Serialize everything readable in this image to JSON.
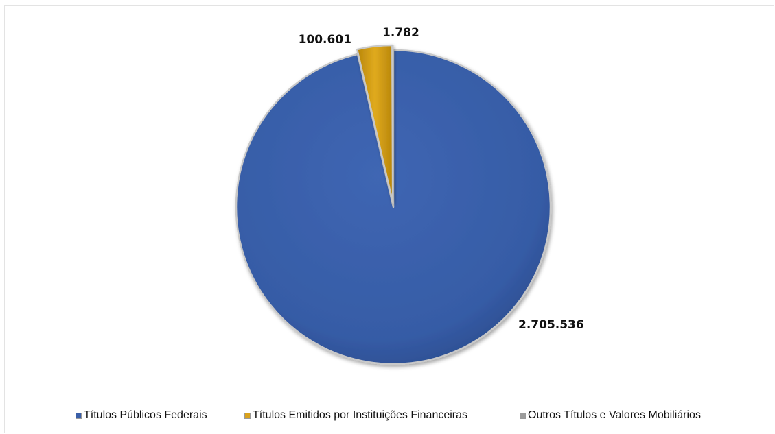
{
  "chart_data": {
    "type": "pie",
    "title": "",
    "slices": [
      {
        "label": "Títulos Públicos Federais",
        "value": 2705536,
        "display": "2.705.536",
        "color": "#3a5fa8"
      },
      {
        "label": "Títulos Emitidos por Instituições Financeiras",
        "value": 100601,
        "display": "100.601",
        "color": "#d9a21c"
      },
      {
        "label": "Outros Títulos e Valores Mobiliários",
        "value": 1782,
        "display": "1.782",
        "color": "#9c9c9c"
      }
    ],
    "legend_position": "bottom",
    "data_labels": true,
    "exploded": true
  }
}
